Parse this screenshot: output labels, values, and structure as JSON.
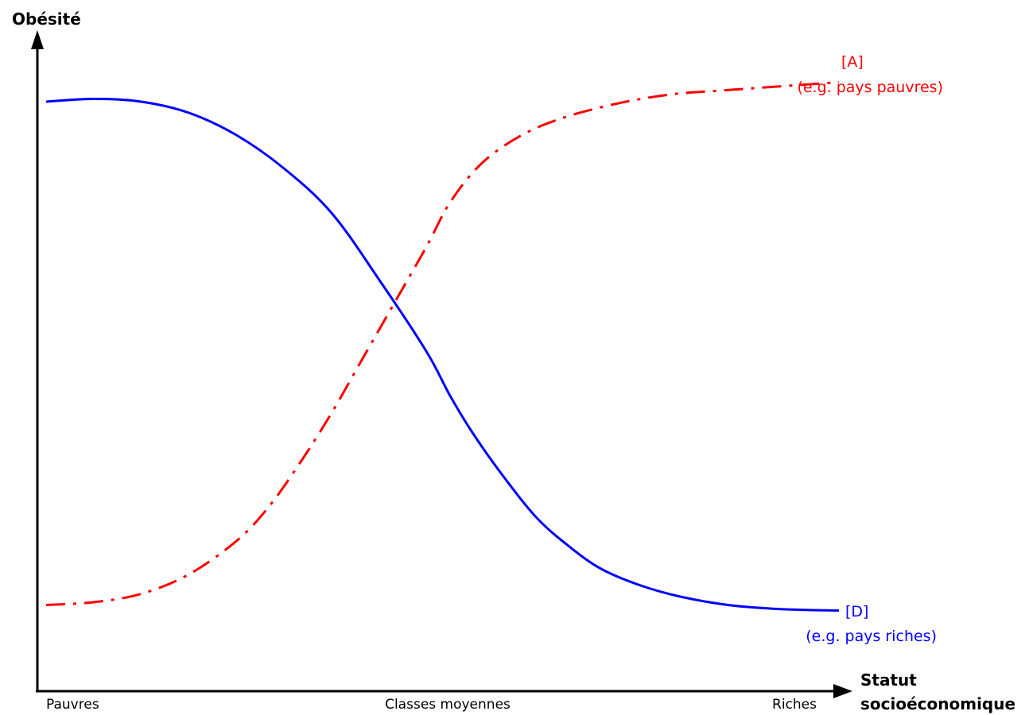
{
  "chart_data": {
    "type": "line",
    "title": "",
    "ylabel": "Obésité",
    "xlabel_lines": [
      "Statut",
      "socioéconomique"
    ],
    "x_tick_labels": [
      "Pauvres",
      "Classes moyennes",
      "Riches"
    ],
    "x_tick_positions": [
      0,
      0.5,
      1
    ],
    "xlim": [
      0,
      1
    ],
    "ylim": [
      0,
      1
    ],
    "grid": false,
    "legend": "inline labels at right end of each curve",
    "series": [
      {
        "id": "D",
        "label": "[D]",
        "sublabel": "(e.g. pays riches)",
        "color": "#0000ff",
        "style": "solid",
        "x": [
          0.0,
          0.06,
          0.12,
          0.18,
          0.24,
          0.3,
          0.36,
          0.42,
          0.48,
          0.51,
          0.54,
          0.58,
          0.62,
          0.66,
          0.7,
          0.75,
          0.8,
          0.86,
          0.92,
          0.96,
          1.0
        ],
        "y": [
          0.92,
          0.925,
          0.92,
          0.9,
          0.86,
          0.8,
          0.72,
          0.6,
          0.47,
          0.39,
          0.32,
          0.24,
          0.17,
          0.12,
          0.08,
          0.05,
          0.03,
          0.015,
          0.008,
          0.006,
          0.005
        ]
      },
      {
        "id": "A",
        "label": "[A]",
        "sublabel": "(e.g. pays pauvres)",
        "color": "#ff0000",
        "style": "dashdot",
        "x": [
          0.0,
          0.06,
          0.12,
          0.18,
          0.24,
          0.28,
          0.32,
          0.36,
          0.4,
          0.44,
          0.48,
          0.51,
          0.55,
          0.6,
          0.65,
          0.7,
          0.75,
          0.8,
          0.85,
          0.9,
          0.95,
          1.0
        ],
        "y": [
          0.015,
          0.02,
          0.035,
          0.07,
          0.13,
          0.19,
          0.27,
          0.36,
          0.46,
          0.56,
          0.66,
          0.74,
          0.81,
          0.86,
          0.89,
          0.91,
          0.925,
          0.935,
          0.94,
          0.945,
          0.95,
          0.955
        ]
      }
    ]
  }
}
